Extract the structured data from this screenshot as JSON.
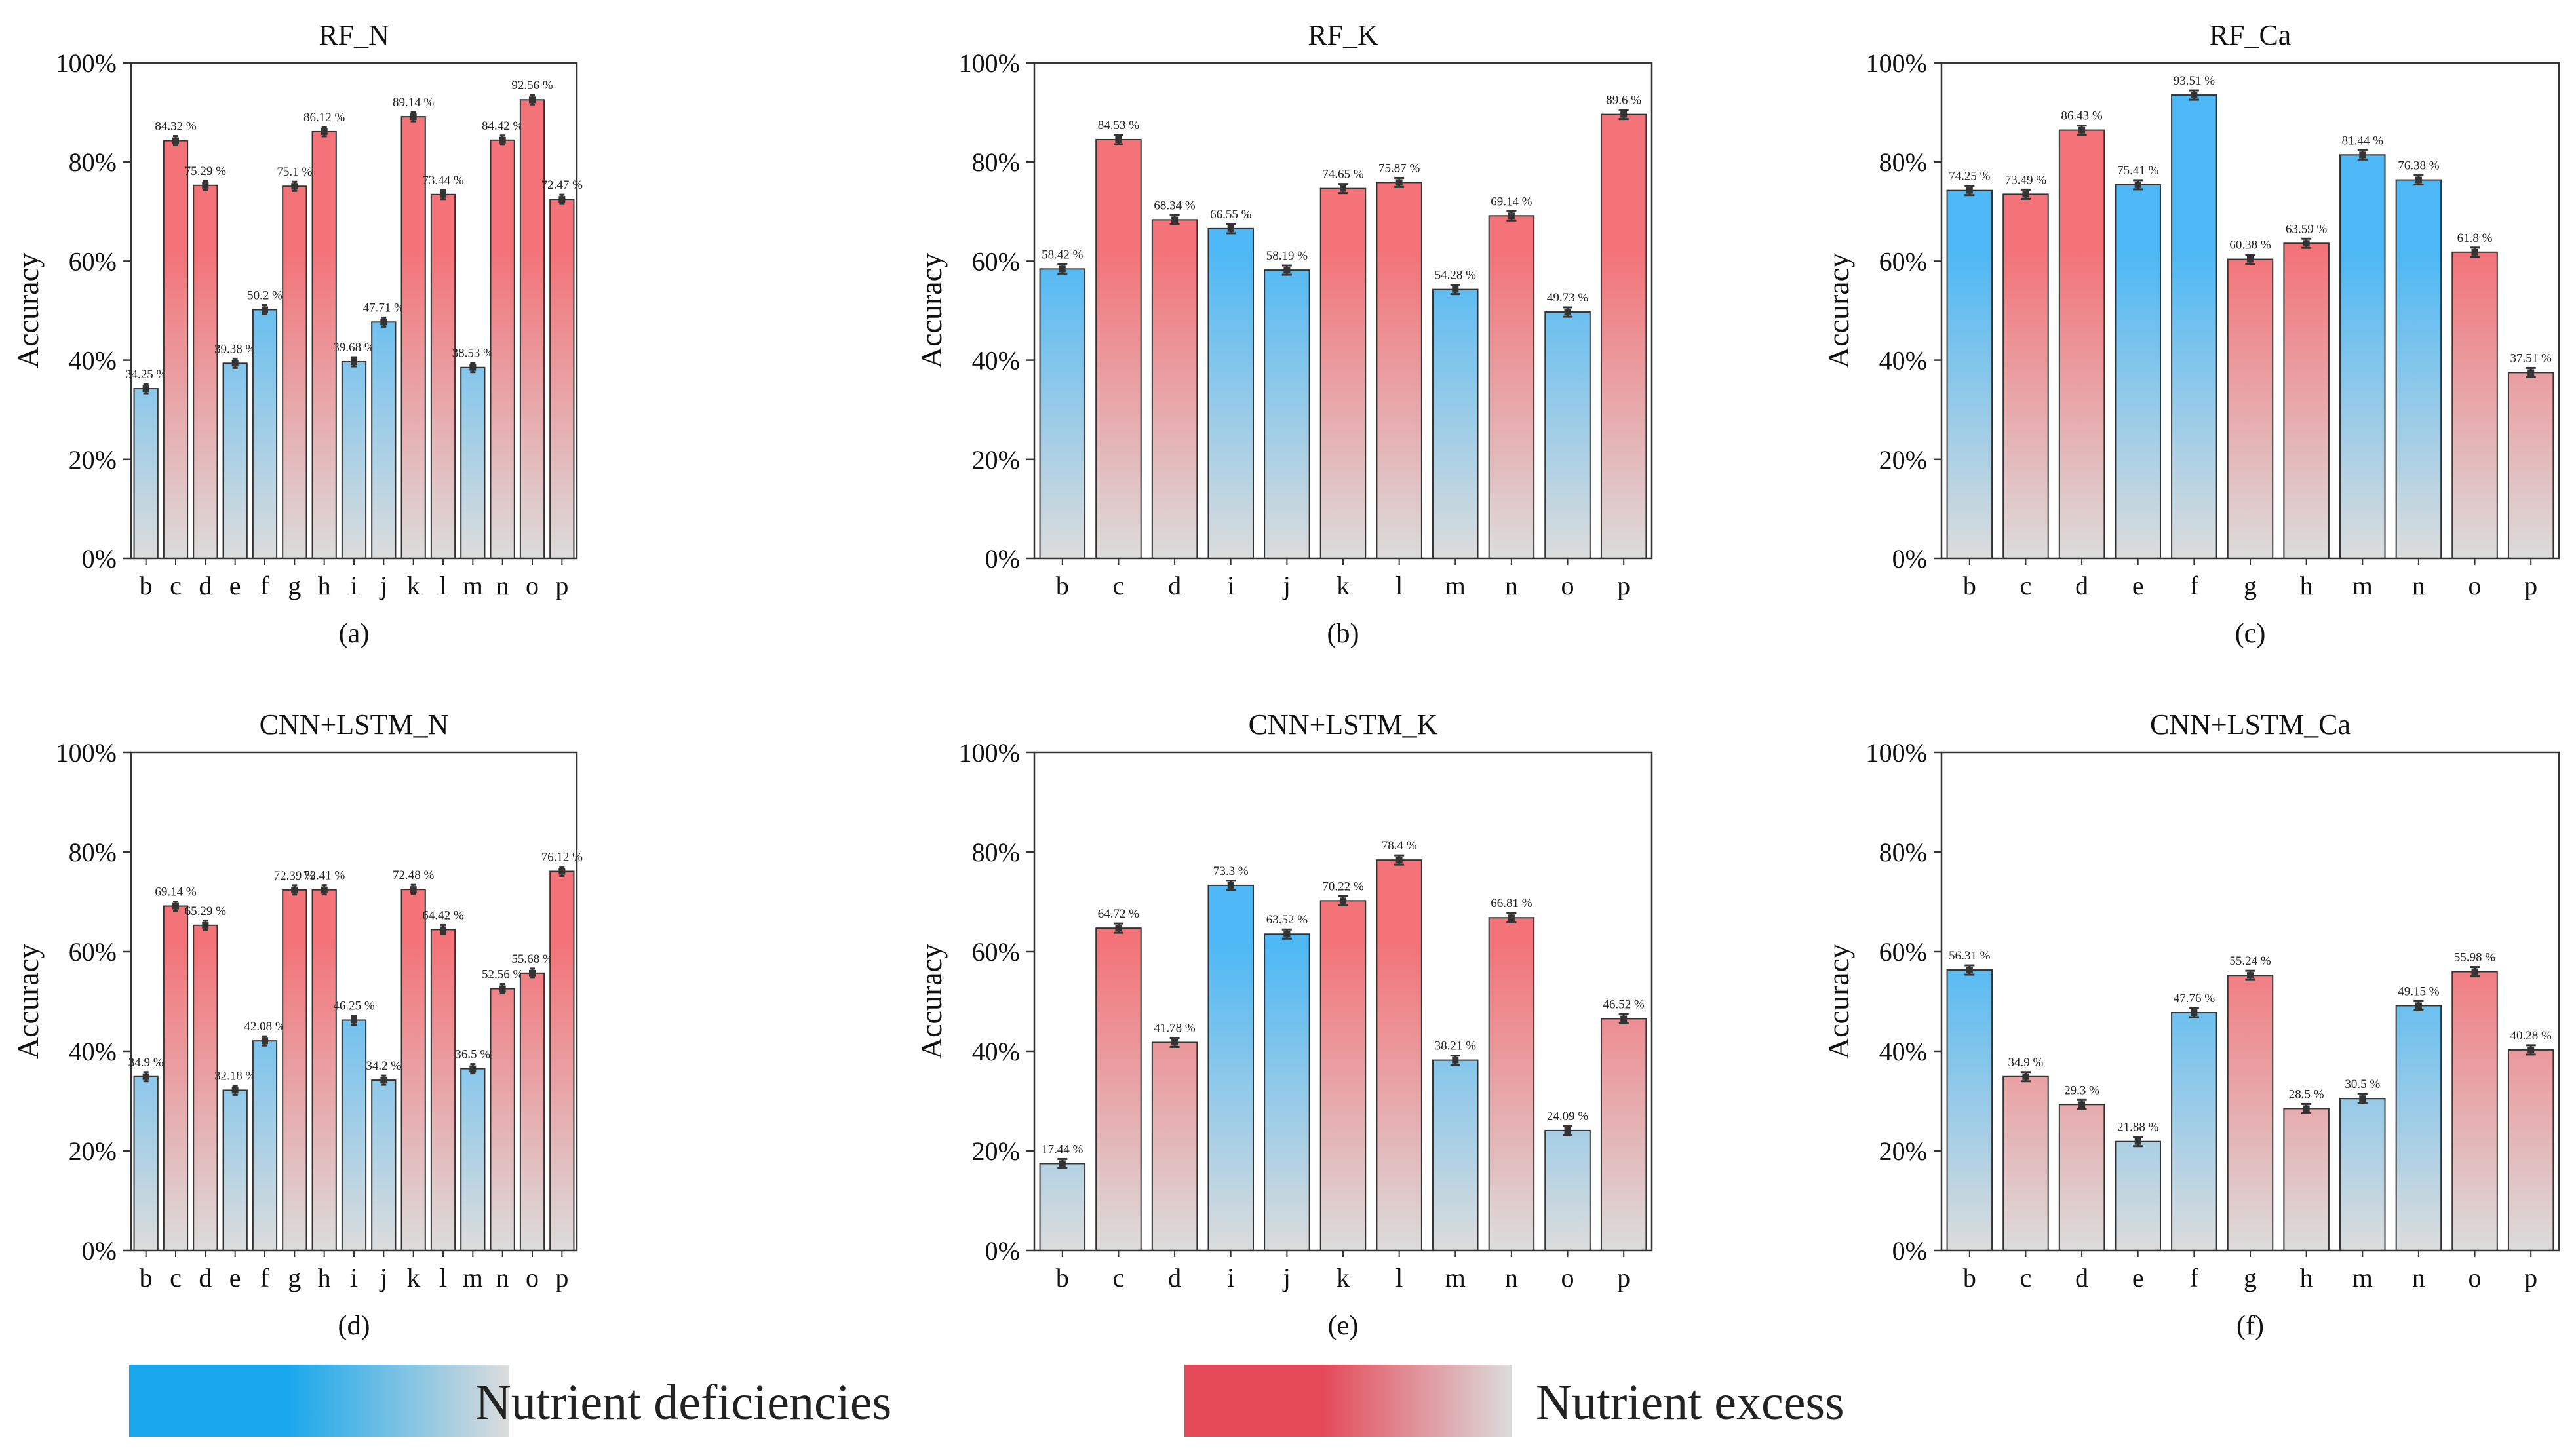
{
  "chart_data": [
    {
      "panel": "(a)",
      "title": "RF_N",
      "type": "bar",
      "ylabel": "Accuracy",
      "ylim": [
        0,
        100
      ],
      "yticks": [
        "0%",
        "20%",
        "40%",
        "60%",
        "80%",
        "100%"
      ],
      "categories": [
        "b",
        "c",
        "d",
        "e",
        "f",
        "g",
        "h",
        "i",
        "j",
        "k",
        "l",
        "m",
        "n",
        "o",
        "p"
      ],
      "values": [
        34.25,
        84.32,
        75.29,
        39.38,
        50.2,
        75.1,
        86.12,
        39.68,
        47.71,
        89.14,
        73.44,
        38.53,
        84.42,
        92.56,
        72.47
      ],
      "labels": [
        "34.25 %",
        "84.32 %",
        "75.29 %",
        "39.38 %",
        "50.2 %",
        "75.1 %",
        "86.12 %",
        "39.68 %",
        "47.71 %",
        "89.14 %",
        "73.44 %",
        "38.53 %",
        "84.42 %",
        "92.56 %",
        "72.47 %"
      ],
      "classes": [
        "deficiency",
        "excess",
        "excess",
        "deficiency",
        "deficiency",
        "excess",
        "excess",
        "deficiency",
        "deficiency",
        "excess",
        "excess",
        "deficiency",
        "excess",
        "excess",
        "excess"
      ]
    },
    {
      "panel": "(b)",
      "title": "RF_K",
      "type": "bar",
      "ylabel": "Accuracy",
      "ylim": [
        0,
        100
      ],
      "yticks": [
        "0%",
        "20%",
        "40%",
        "60%",
        "80%",
        "100%"
      ],
      "categories": [
        "b",
        "c",
        "d",
        "i",
        "j",
        "k",
        "l",
        "m",
        "n",
        "o",
        "p"
      ],
      "values": [
        58.42,
        84.53,
        68.34,
        66.55,
        58.19,
        74.65,
        75.87,
        54.28,
        69.14,
        49.73,
        89.6
      ],
      "labels": [
        "58.42 %",
        "84.53 %",
        "68.34 %",
        "66.55 %",
        "58.19 %",
        "74.65 %",
        "75.87 %",
        "54.28 %",
        "69.14 %",
        "49.73 %",
        "89.6 %"
      ],
      "classes": [
        "deficiency",
        "excess",
        "excess",
        "deficiency",
        "deficiency",
        "excess",
        "excess",
        "deficiency",
        "excess",
        "deficiency",
        "excess"
      ]
    },
    {
      "panel": "(c)",
      "title": "RF_Ca",
      "type": "bar",
      "ylabel": "Accuracy",
      "ylim": [
        0,
        100
      ],
      "yticks": [
        "0%",
        "20%",
        "40%",
        "60%",
        "80%",
        "100%"
      ],
      "categories": [
        "b",
        "c",
        "d",
        "e",
        "f",
        "g",
        "h",
        "m",
        "n",
        "o",
        "p"
      ],
      "values": [
        74.25,
        73.49,
        86.43,
        75.41,
        93.51,
        60.38,
        63.59,
        81.44,
        76.38,
        61.8,
        37.51
      ],
      "labels": [
        "74.25 %",
        "73.49 %",
        "86.43 %",
        "75.41 %",
        "93.51 %",
        "60.38 %",
        "63.59 %",
        "81.44 %",
        "76.38 %",
        "61.8 %",
        "37.51 %"
      ],
      "classes": [
        "deficiency",
        "excess",
        "excess",
        "deficiency",
        "deficiency",
        "excess",
        "excess",
        "deficiency",
        "deficiency",
        "excess",
        "excess"
      ]
    },
    {
      "panel": "(d)",
      "title": "CNN+LSTM_N",
      "type": "bar",
      "ylabel": "Accuracy",
      "ylim": [
        0,
        100
      ],
      "yticks": [
        "0%",
        "20%",
        "40%",
        "60%",
        "80%",
        "100%"
      ],
      "categories": [
        "b",
        "c",
        "d",
        "e",
        "f",
        "g",
        "h",
        "i",
        "j",
        "k",
        "l",
        "m",
        "n",
        "o",
        "p"
      ],
      "values": [
        34.9,
        69.14,
        65.29,
        32.18,
        42.08,
        72.39,
        72.41,
        46.25,
        34.2,
        72.48,
        64.42,
        36.5,
        52.56,
        55.68,
        76.12
      ],
      "labels": [
        "34.9 %",
        "69.14 %",
        "65.29 %",
        "32.18 %",
        "42.08 %",
        "72.39 %",
        "72.41 %",
        "46.25 %",
        "34.2 %",
        "72.48 %",
        "64.42 %",
        "36.5 %",
        "52.56 %",
        "55.68 %",
        "76.12 %"
      ],
      "classes": [
        "deficiency",
        "excess",
        "excess",
        "deficiency",
        "deficiency",
        "excess",
        "excess",
        "deficiency",
        "deficiency",
        "excess",
        "excess",
        "deficiency",
        "excess",
        "excess",
        "excess"
      ]
    },
    {
      "panel": "(e)",
      "title": "CNN+LSTM_K",
      "type": "bar",
      "ylabel": "Accuracy",
      "ylim": [
        0,
        100
      ],
      "yticks": [
        "0%",
        "20%",
        "40%",
        "60%",
        "80%",
        "100%"
      ],
      "categories": [
        "b",
        "c",
        "d",
        "i",
        "j",
        "k",
        "l",
        "m",
        "n",
        "o",
        "p"
      ],
      "values": [
        17.44,
        64.72,
        41.78,
        73.3,
        63.52,
        70.22,
        78.4,
        38.21,
        66.81,
        24.09,
        46.52
      ],
      "labels": [
        "17.44 %",
        "64.72 %",
        "41.78 %",
        "73.3 %",
        "63.52 %",
        "70.22 %",
        "78.4 %",
        "38.21 %",
        "66.81 %",
        "24.09 %",
        "46.52 %"
      ],
      "classes": [
        "deficiency",
        "excess",
        "excess",
        "deficiency",
        "deficiency",
        "excess",
        "excess",
        "deficiency",
        "excess",
        "deficiency",
        "excess"
      ]
    },
    {
      "panel": "(f)",
      "title": "CNN+LSTM_Ca",
      "type": "bar",
      "ylabel": "Accuracy",
      "ylim": [
        0,
        100
      ],
      "yticks": [
        "0%",
        "20%",
        "40%",
        "60%",
        "80%",
        "100%"
      ],
      "categories": [
        "b",
        "c",
        "d",
        "e",
        "f",
        "g",
        "h",
        "m",
        "n",
        "o",
        "p"
      ],
      "values": [
        56.31,
        34.9,
        29.3,
        21.88,
        47.76,
        55.24,
        28.5,
        30.5,
        49.15,
        55.98,
        40.28
      ],
      "labels": [
        "56.31 %",
        "34.9 %",
        "29.3 %",
        "21.88 %",
        "47.76 %",
        "55.24 %",
        "28.5 %",
        "30.5 %",
        "49.15 %",
        "55.98 %",
        "40.28 %"
      ],
      "classes": [
        "deficiency",
        "excess",
        "excess",
        "deficiency",
        "deficiency",
        "excess",
        "excess",
        "deficiency",
        "deficiency",
        "excess",
        "excess"
      ]
    }
  ],
  "legend": {
    "deficiency_label": "Nutrient deficiencies",
    "excess_label": "Nutrient excess"
  },
  "colors": {
    "deficiency": "#4db8f5",
    "excess": "#f37378",
    "base": "#dcdcdc",
    "legend_deficiency": "#1aa8ec",
    "legend_excess": "#e44a58",
    "error_bar": "#333333"
  }
}
